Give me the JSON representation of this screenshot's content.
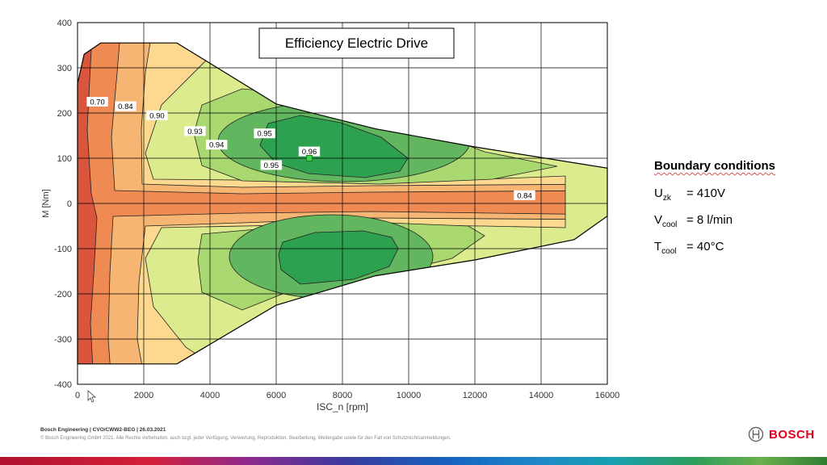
{
  "chart_data": {
    "type": "contour",
    "title": "Efficiency Electric Drive",
    "xlabel": "ISC_n [rpm]",
    "ylabel": "M [Nm]",
    "xlim": [
      0,
      16000
    ],
    "ylim": [
      -400,
      400
    ],
    "x_ticks": [
      "0",
      "2000",
      "4000",
      "6000",
      "8000",
      "10000",
      "12000",
      "14000",
      "16000"
    ],
    "y_ticks": [
      "400",
      "300",
      "200",
      "100",
      "0",
      "-100",
      "-200",
      "-300",
      "-400"
    ],
    "grid": true,
    "boundary": [
      [
        0,
        265
      ],
      [
        200,
        330
      ],
      [
        700,
        355
      ],
      [
        3000,
        355
      ],
      [
        6000,
        220
      ],
      [
        9000,
        165
      ],
      [
        12000,
        125
      ],
      [
        16000,
        78
      ],
      [
        16000,
        -28
      ],
      [
        15000,
        -80
      ],
      [
        12000,
        -125
      ],
      [
        9000,
        -160
      ],
      [
        6000,
        -225
      ],
      [
        3000,
        -355
      ],
      [
        0,
        -355
      ]
    ],
    "contour_labels": [
      {
        "text": "0.70",
        "x": 600,
        "y": 225
      },
      {
        "text": "0.84",
        "x": 1450,
        "y": 215
      },
      {
        "text": "0.90",
        "x": 2400,
        "y": 195
      },
      {
        "text": "0.93",
        "x": 3550,
        "y": 160
      },
      {
        "text": "0.94",
        "x": 4200,
        "y": 130
      },
      {
        "text": "0.95",
        "x": 5650,
        "y": 155
      },
      {
        "text": "0.96",
        "x": 7000,
        "y": 115
      },
      {
        "text": "0.95",
        "x": 5850,
        "y": 85
      },
      {
        "text": "0.84",
        "x": 13500,
        "y": 18
      }
    ],
    "max_point": {
      "x": 7000,
      "y": 100,
      "value": 0.96
    },
    "colors": {
      "c070": "#d9553b",
      "c084": "#ee8a52",
      "c087": "#f6b572",
      "c090": "#fcd98e",
      "c093": "#dceb8e",
      "c094": "#a8d86f",
      "c095": "#62b65f",
      "c096": "#2ea151"
    }
  },
  "boundary_conditions": {
    "title": "Boundary conditions",
    "rows": [
      {
        "sym": "U",
        "sub": "zk",
        "value": "= 410V"
      },
      {
        "sym": "V",
        "sub": "cool",
        "value": "= 8 l/min"
      },
      {
        "sym": "T",
        "sub": "cool",
        "value": "= 40°C"
      }
    ]
  },
  "footer": {
    "line1": "Bosch Engineering | CVO/CWW2-BEG | 26.03.2021",
    "line2": "© Bosch Engineering GmbH 2021. Alle Rechte vorbehalten, auch bzgl. jeder Verfügung, Verwertung, Reproduktion, Bearbeitung, Weitergabe sowie für den Fall von Schutzrechtsanmeldungen."
  },
  "logo": {
    "text": "BOSCH",
    "icon": "bosch-armature-icon",
    "color": "#e2001a"
  }
}
